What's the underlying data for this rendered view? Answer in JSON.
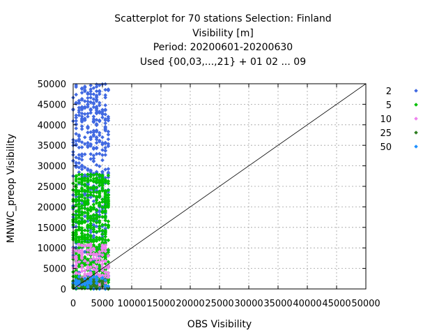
{
  "chart_data": {
    "type": "scatter",
    "title_lines": [
      "Scatterplot for   70 stations Selection: Finland",
      "Visibility [m]",
      "Period: 20200601-20200630",
      "Used {00,03,...,21} + 01 02 ... 09"
    ],
    "xlabel": "OBS Visibility",
    "ylabel": "MNWC_preop Visibility",
    "xlim": [
      0,
      50000
    ],
    "ylim": [
      0,
      50000
    ],
    "x_ticks": [
      "0",
      "5000",
      "10000",
      "15000",
      "20000",
      "25000",
      "30000",
      "35000",
      "40000",
      "45000",
      "50000"
    ],
    "y_ticks": [
      "0",
      "5000",
      "10000",
      "15000",
      "20000",
      "25000",
      "30000",
      "35000",
      "40000",
      "45000",
      "50000"
    ],
    "grid": true,
    "diagonal_line": true,
    "legend_position": "right",
    "series": [
      {
        "name": "2",
        "color": "#4169e1",
        "x_range": [
          0,
          6000
        ],
        "y_range": [
          0,
          50000
        ],
        "n": 520
      },
      {
        "name": "5",
        "color": "#00c000",
        "x_range": [
          0,
          6000
        ],
        "y_range": [
          0,
          28000
        ],
        "n": 650
      },
      {
        "name": "10",
        "color": "#ee82ee",
        "x_range": [
          0,
          6000
        ],
        "y_range": [
          0,
          11000
        ],
        "n": 160
      },
      {
        "name": "25",
        "color": "#2e7d20",
        "x_range": [
          0,
          6000
        ],
        "y_range": [
          0,
          2500
        ],
        "n": 90
      },
      {
        "name": "50",
        "color": "#1e90ff",
        "x_range": [
          0,
          6000
        ],
        "y_range": [
          0,
          3000
        ],
        "n": 40
      }
    ]
  }
}
